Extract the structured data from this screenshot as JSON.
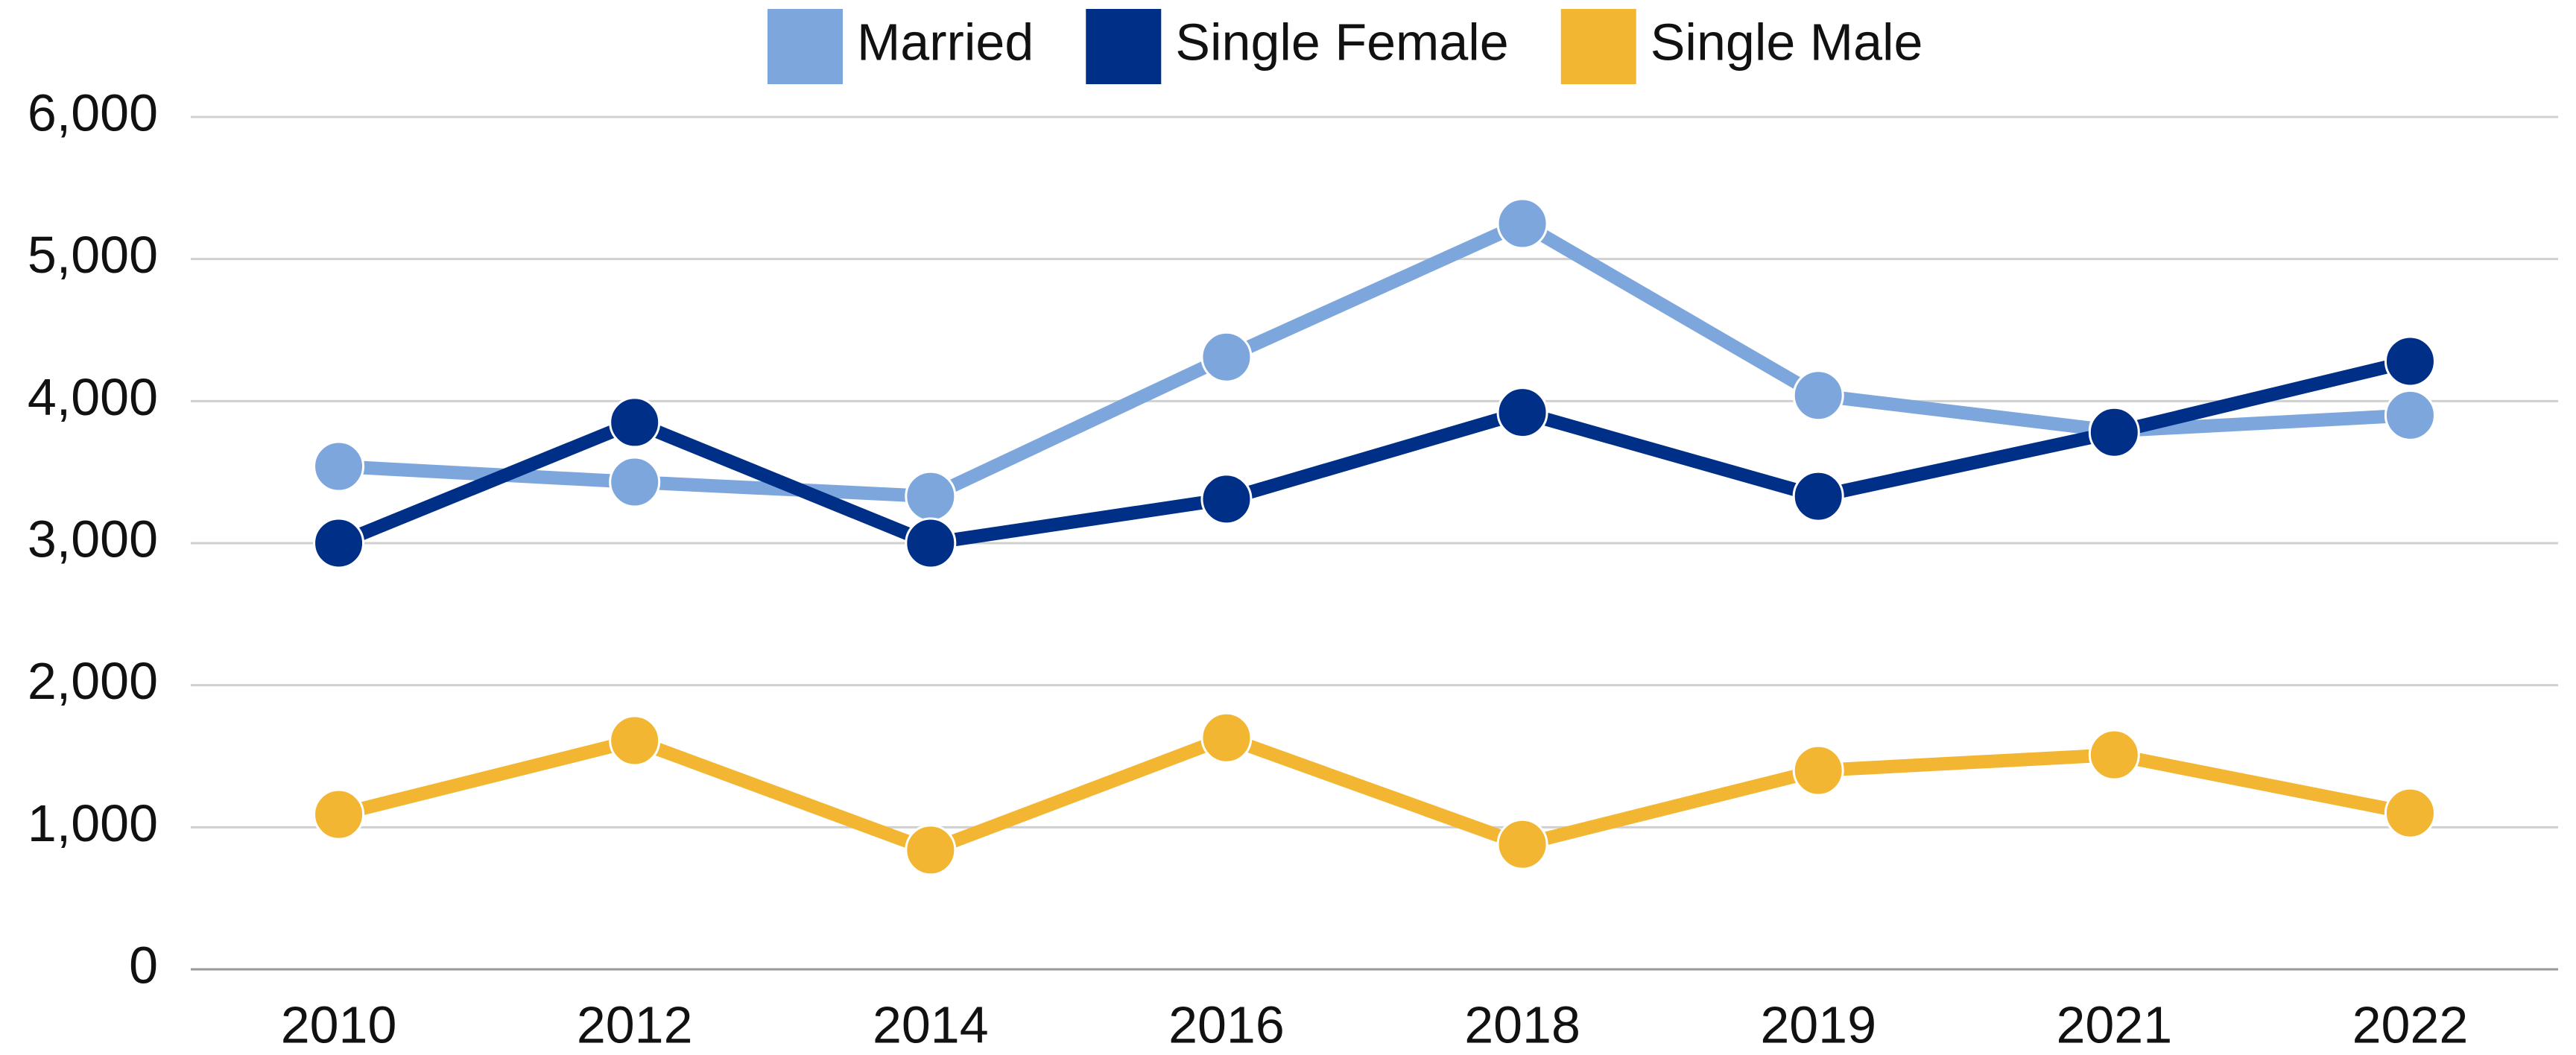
{
  "chart_data": {
    "type": "line",
    "categories": [
      "2010",
      "2012",
      "2014",
      "2016",
      "2018",
      "2019",
      "2021",
      "2022"
    ],
    "series": [
      {
        "name": "Married",
        "color": "#7da7dc",
        "values": [
          3540,
          3430,
          3330,
          4310,
          5250,
          4040,
          3790,
          3900
        ]
      },
      {
        "name": "Single Female",
        "color": "#002f87",
        "values": [
          3000,
          3850,
          3000,
          3310,
          3920,
          3330,
          3780,
          4280
        ]
      },
      {
        "name": "Single Male",
        "color": "#f2b632",
        "values": [
          1090,
          1610,
          840,
          1630,
          880,
          1400,
          1510,
          1100
        ]
      }
    ],
    "ylim": [
      0,
      6000
    ],
    "yticks": [
      0,
      {
        "value": 1000,
        "label": "1,000"
      },
      {
        "value": 2000,
        "label": "2,000"
      },
      {
        "value": 3000,
        "label": "3,000"
      },
      {
        "value": 4000,
        "label": "4,000"
      },
      {
        "value": 5000,
        "label": "5,000"
      },
      {
        "value": 6000,
        "label": "6,000"
      }
    ],
    "grid": true,
    "legend": "top"
  }
}
